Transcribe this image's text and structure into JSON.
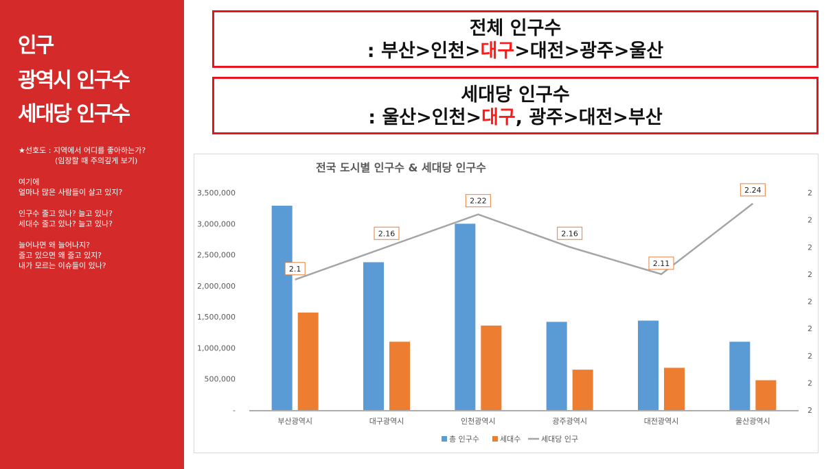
{
  "sidebar": {
    "title1": "인구",
    "title2": "광역시 인구수",
    "title3": "세대당 인구수",
    "notes": [
      {
        "line": "★선호도 : 지역에서 어디를 좋아하는가?",
        "sub": "(임장할 때 주의깊게 보기)"
      },
      {
        "line": "여기에",
        "line2": "얼마나 많은 사람들이 살고 있지?"
      },
      {
        "line": "인구수 줄고 있나? 늘고 있나?",
        "line2": "세대수 줄고 있나? 늘고 있나?"
      },
      {
        "line": "늘어나면 왜 늘어나지?",
        "line2": "줄고 있으면 왜 줄고 있지?",
        "line3": "내가 모르는 이슈들이 있나?"
      }
    ]
  },
  "box1": {
    "title": "전체 인구수",
    "pre": ": 부산>인천>",
    "highlight": "대구",
    "post": ">대전>광주>울산"
  },
  "box2": {
    "title": "세대당 인구수",
    "pre": ": 울산>인천>",
    "highlight": "대구",
    "post": ", 광주>대전>부산"
  },
  "chart_data": {
    "type": "bar",
    "title": "전국 도시별 인구수 & 세대당 인구수",
    "categories": [
      "부산광역시",
      "대구광역시",
      "인천광역시",
      "광주광역시",
      "대전광역시",
      "울산광역시"
    ],
    "ylim": [
      0,
      3500000
    ],
    "yticks": [
      "-",
      "500,000",
      "1,000,000",
      "1,500,000",
      "2,000,000",
      "2,500,000",
      "3,000,000",
      "3,500,000"
    ],
    "y2ticks": [
      "2",
      "2",
      "2",
      "2",
      "2",
      "2",
      "2",
      "2",
      "2"
    ],
    "series": [
      {
        "name": "총 인구수",
        "type": "bar",
        "color": "#5b9bd5",
        "values": [
          3290000,
          2380000,
          3000000,
          1420000,
          1440000,
          1100000
        ]
      },
      {
        "name": "세대수",
        "type": "bar",
        "color": "#ed7d31",
        "values": [
          1570000,
          1100000,
          1360000,
          650000,
          680000,
          480000
        ]
      },
      {
        "name": "세대당 인구",
        "type": "line",
        "color": "#a5a5a5",
        "values": [
          2.1,
          2.16,
          2.22,
          2.16,
          2.11,
          2.24
        ],
        "labels": [
          "2.1",
          "2.16",
          "2.22",
          "2.16",
          "2.11",
          "2.24"
        ]
      }
    ],
    "y2lim": [
      1.86,
      2.26
    ],
    "legend": "bottom"
  }
}
